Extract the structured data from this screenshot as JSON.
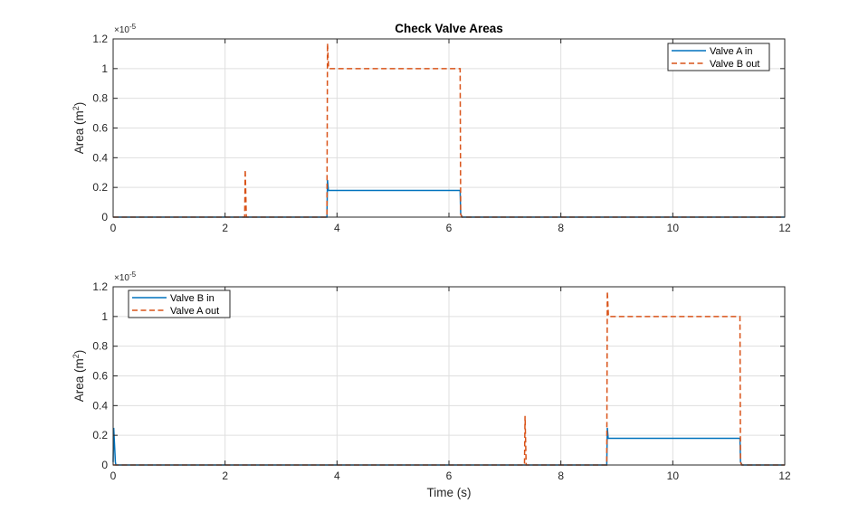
{
  "chart_data": [
    {
      "type": "line",
      "title": "Check Valve Areas",
      "xlabel": "",
      "ylabel_base": "Area  (m",
      "ylabel_sup": "2",
      "ylabel_end": ")",
      "y_multiplier": "×10",
      "y_multiplier_exp": "-5",
      "xlim": [
        0,
        12
      ],
      "ylim": [
        0,
        1.2
      ],
      "xticks": [
        0,
        2,
        4,
        6,
        8,
        10,
        12
      ],
      "yticks": [
        0,
        0.2,
        0.4,
        0.6,
        0.8,
        1,
        1.2
      ],
      "grid": true,
      "legend_position": "top-right",
      "series": [
        {
          "name": "Valve A in",
          "color": "#0072BD",
          "style": "solid",
          "x": [
            0,
            3.82,
            3.83,
            3.845,
            3.86,
            6.2,
            6.21,
            6.24,
            12
          ],
          "y": [
            0,
            0,
            0.25,
            0.18,
            0.18,
            0.18,
            0.02,
            0,
            0
          ]
        },
        {
          "name": "Valve B out",
          "color": "#D95319",
          "style": "dashed",
          "x": [
            0,
            2.35,
            2.36,
            2.38,
            2.39,
            3.82,
            3.83,
            3.85,
            3.86,
            6.2,
            6.21,
            6.23,
            12
          ],
          "y": [
            0,
            0,
            0.32,
            0,
            0,
            0,
            1.17,
            1.0,
            1.0,
            1.0,
            0.02,
            0,
            0
          ]
        }
      ]
    },
    {
      "type": "line",
      "title": "",
      "xlabel": "Time (s)",
      "ylabel_base": "Area  (m",
      "ylabel_sup": "2",
      "ylabel_end": ")",
      "y_multiplier": "×10",
      "y_multiplier_exp": "-5",
      "xlim": [
        0,
        12
      ],
      "ylim": [
        0,
        1.2
      ],
      "xticks": [
        0,
        2,
        4,
        6,
        8,
        10,
        12
      ],
      "yticks": [
        0,
        0.2,
        0.4,
        0.6,
        0.8,
        1,
        1.2
      ],
      "grid": true,
      "legend_position": "top-left",
      "series": [
        {
          "name": "Valve B in",
          "color": "#0072BD",
          "style": "solid",
          "x": [
            0,
            0.01,
            0.04,
            0.05,
            8.82,
            8.83,
            8.845,
            8.86,
            11.2,
            11.21,
            11.24,
            12
          ],
          "y": [
            0.02,
            0.25,
            0.02,
            0,
            0,
            0.25,
            0.18,
            0.18,
            0.18,
            0.02,
            0,
            0
          ]
        },
        {
          "name": "Valve A out",
          "color": "#D95319",
          "style": "dashed",
          "x": [
            0,
            7.35,
            7.36,
            7.38,
            7.39,
            8.82,
            8.83,
            8.85,
            8.86,
            11.2,
            11.21,
            11.23,
            12
          ],
          "y": [
            0,
            0,
            0.33,
            0,
            0,
            0,
            1.17,
            1.0,
            1.0,
            1.0,
            0.02,
            0,
            0
          ]
        }
      ]
    }
  ]
}
